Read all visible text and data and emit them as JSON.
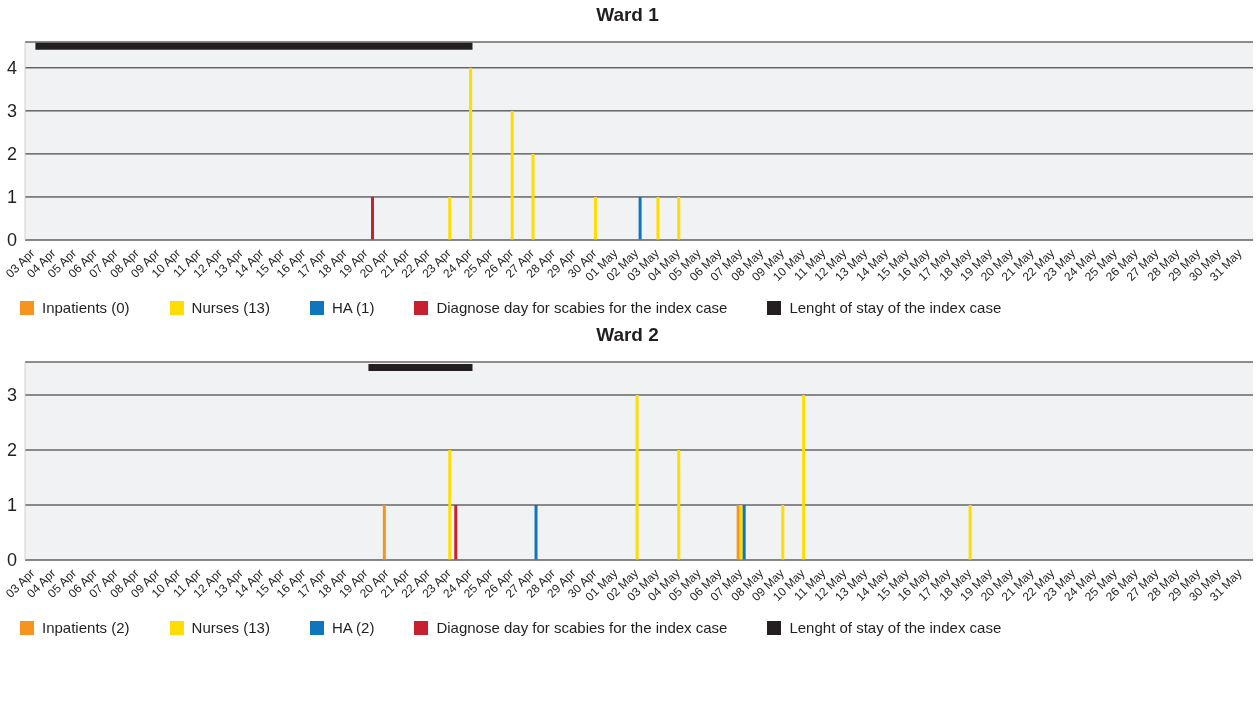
{
  "chart_data": [
    {
      "type": "bar",
      "title": "Ward 1",
      "categories": [
        "03 Apr",
        "04 Apr",
        "05 Apr",
        "06 Apr",
        "07 Apr",
        "08 Apr",
        "09 Apr",
        "10 Apr",
        "11 Apr",
        "12 Apr",
        "13 Apr",
        "14 Apr",
        "15 Apr",
        "16 Apr",
        "17 Apr",
        "18 Apr",
        "19 Apr",
        "20 Apr",
        "21 Apr",
        "22 Apr",
        "23 Apr",
        "24 Apr",
        "25 Apr",
        "26 Apr",
        "27 Apr",
        "28 Apr",
        "29 Apr",
        "30 Apr",
        "01 May",
        "02 May",
        "03 May",
        "04 May",
        "05 May",
        "06 May",
        "07 May",
        "08 May",
        "09 May",
        "10 May",
        "11 May",
        "12 May",
        "13 May",
        "14 May",
        "15 May",
        "16 May",
        "17 May",
        "18 May",
        "19 May",
        "20 May",
        "21 May",
        "22 May",
        "23 May",
        "24 May",
        "25 May",
        "26 May",
        "27 May",
        "28 May",
        "29 May",
        "30 May",
        "31 May"
      ],
      "series": [
        {
          "name": "Inpatients (0)",
          "color": "#f7941d",
          "values": [
            null,
            null,
            null,
            null,
            null,
            null,
            null,
            null,
            null,
            null,
            null,
            null,
            null,
            null,
            null,
            null,
            null,
            null,
            null,
            null,
            null,
            null,
            null,
            null,
            null,
            null,
            null,
            null,
            null,
            null,
            null,
            null,
            null,
            null,
            null,
            null,
            null,
            null,
            null,
            null,
            null,
            null,
            null,
            null,
            null,
            null,
            null,
            null,
            null,
            null,
            null,
            null,
            null,
            null,
            null,
            null,
            null,
            null,
            null
          ]
        },
        {
          "name": "Nurses (13)",
          "color": "#ffdd00",
          "values": [
            null,
            null,
            null,
            null,
            null,
            null,
            null,
            null,
            null,
            null,
            null,
            null,
            null,
            null,
            null,
            null,
            null,
            null,
            null,
            null,
            1,
            4,
            null,
            3,
            2,
            null,
            null,
            1,
            null,
            null,
            1,
            1,
            null,
            null,
            null,
            null,
            null,
            null,
            null,
            null,
            null,
            null,
            null,
            null,
            null,
            null,
            null,
            null,
            null,
            null,
            null,
            null,
            null,
            null,
            null,
            null,
            null,
            null,
            null
          ]
        },
        {
          "name": "HA (1)",
          "color": "#0f75bc",
          "values": [
            null,
            null,
            null,
            null,
            null,
            null,
            null,
            null,
            null,
            null,
            null,
            null,
            null,
            null,
            null,
            null,
            null,
            null,
            null,
            null,
            null,
            null,
            null,
            null,
            null,
            null,
            null,
            null,
            null,
            1,
            null,
            null,
            null,
            null,
            null,
            null,
            null,
            null,
            null,
            null,
            null,
            null,
            null,
            null,
            null,
            null,
            null,
            null,
            null,
            null,
            null,
            null,
            null,
            null,
            null,
            null,
            null,
            null,
            null
          ]
        },
        {
          "name": "Diagnose day for scabies for the index case",
          "color": "#c8202f",
          "values": [
            null,
            null,
            null,
            null,
            null,
            null,
            null,
            null,
            null,
            null,
            null,
            null,
            null,
            null,
            null,
            null,
            1,
            null,
            null,
            null,
            null,
            null,
            null,
            null,
            null,
            null,
            null,
            null,
            null,
            null,
            null,
            null,
            null,
            null,
            null,
            null,
            null,
            null,
            null,
            null,
            null,
            null,
            null,
            null,
            null,
            null,
            null,
            null,
            null,
            null,
            null,
            null,
            null,
            null,
            null,
            null,
            null,
            null,
            null
          ]
        },
        {
          "name": "Lenght of stay of the index case",
          "type": "line",
          "color": "#231f20",
          "values": [
            4.5,
            4.5,
            4.5,
            4.5,
            4.5,
            4.5,
            4.5,
            4.5,
            4.5,
            4.5,
            4.5,
            4.5,
            4.5,
            4.5,
            4.5,
            4.5,
            4.5,
            4.5,
            4.5,
            4.5,
            4.5,
            4.5,
            null,
            null,
            null,
            null,
            null,
            null,
            null,
            null,
            null,
            null,
            null,
            null,
            null,
            null,
            null,
            null,
            null,
            null,
            null,
            null,
            null,
            null,
            null,
            null,
            null,
            null,
            null,
            null,
            null,
            null,
            null,
            null,
            null,
            null,
            null,
            null,
            null
          ]
        }
      ],
      "ylim": [
        0,
        4.6
      ],
      "yticks": [
        0,
        1,
        2,
        3,
        4
      ],
      "grid": "y",
      "legend": "bottom"
    },
    {
      "type": "bar",
      "title": "Ward 2",
      "categories": [
        "03 Apr",
        "04 Apr",
        "05 Apr",
        "06 Apr",
        "07 Apr",
        "08 Apr",
        "09 Apr",
        "10 Apr",
        "11 Apr",
        "12 Apr",
        "13 Apr",
        "14 Apr",
        "15 Apr",
        "16 Apr",
        "17 Apr",
        "18 Apr",
        "19 Apr",
        "20 Apr",
        "21 Apr",
        "22 Apr",
        "23 Apr",
        "24 Apr",
        "25 Apr",
        "26 Apr",
        "27 Apr",
        "28 Apr",
        "29 Apr",
        "30 Apr",
        "01 May",
        "02 May",
        "03 May",
        "04 May",
        "05 May",
        "06 May",
        "07 May",
        "08 May",
        "09 May",
        "10 May",
        "11 May",
        "12 May",
        "13 May",
        "14 May",
        "15 May",
        "16 May",
        "17 May",
        "18 May",
        "19 May",
        "20 May",
        "21 May",
        "22 May",
        "23 May",
        "24 May",
        "25 May",
        "26 May",
        "27 May",
        "28 May",
        "29 May",
        "30 May",
        "31 May"
      ],
      "series": [
        {
          "name": "Inpatients (2)",
          "color": "#f7941d",
          "values": [
            null,
            null,
            null,
            null,
            null,
            null,
            null,
            null,
            null,
            null,
            null,
            null,
            null,
            null,
            null,
            null,
            null,
            1,
            null,
            null,
            null,
            null,
            null,
            null,
            null,
            null,
            null,
            null,
            null,
            null,
            null,
            null,
            null,
            null,
            1,
            null,
            null,
            null,
            null,
            null,
            null,
            null,
            null,
            null,
            null,
            null,
            null,
            null,
            null,
            null,
            null,
            null,
            null,
            null,
            null,
            null,
            null,
            null,
            null
          ]
        },
        {
          "name": "Nurses (13)",
          "color": "#ffdd00",
          "values": [
            null,
            null,
            null,
            null,
            null,
            null,
            null,
            null,
            null,
            null,
            null,
            null,
            null,
            null,
            null,
            null,
            null,
            null,
            null,
            null,
            2,
            null,
            null,
            null,
            null,
            null,
            null,
            null,
            null,
            3,
            null,
            2,
            null,
            null,
            1,
            null,
            1,
            3,
            null,
            null,
            null,
            null,
            null,
            null,
            null,
            1,
            null,
            null,
            null,
            null,
            null,
            null,
            null,
            null,
            null,
            null,
            null,
            null,
            null
          ]
        },
        {
          "name": "HA (2)",
          "color": "#0f75bc",
          "values": [
            null,
            null,
            null,
            null,
            null,
            null,
            null,
            null,
            null,
            null,
            null,
            null,
            null,
            null,
            null,
            null,
            null,
            null,
            null,
            null,
            null,
            null,
            null,
            null,
            1,
            null,
            null,
            null,
            null,
            null,
            null,
            null,
            null,
            null,
            1,
            null,
            null,
            null,
            null,
            null,
            null,
            null,
            null,
            null,
            null,
            null,
            null,
            null,
            null,
            null,
            null,
            null,
            null,
            null,
            null,
            null,
            null,
            null,
            null
          ]
        },
        {
          "name": "Diagnose day for scabies for the index case",
          "color": "#c8202f",
          "values": [
            null,
            null,
            null,
            null,
            null,
            null,
            null,
            null,
            null,
            null,
            null,
            null,
            null,
            null,
            null,
            null,
            null,
            null,
            null,
            null,
            1,
            null,
            null,
            null,
            null,
            null,
            null,
            null,
            null,
            null,
            null,
            null,
            null,
            null,
            null,
            null,
            null,
            null,
            null,
            null,
            null,
            null,
            null,
            null,
            null,
            null,
            null,
            null,
            null,
            null,
            null,
            null,
            null,
            null,
            null,
            null,
            null,
            null,
            null
          ]
        },
        {
          "name": "Lenght of stay of the index case",
          "type": "line",
          "color": "#231f20",
          "values": [
            null,
            null,
            null,
            null,
            null,
            null,
            null,
            null,
            null,
            null,
            null,
            null,
            null,
            null,
            null,
            null,
            3.5,
            3.5,
            3.5,
            3.5,
            3.5,
            3.5,
            null,
            null,
            null,
            null,
            null,
            null,
            null,
            null,
            null,
            null,
            null,
            null,
            null,
            null,
            null,
            null,
            null,
            null,
            null,
            null,
            null,
            null,
            null,
            null,
            null,
            null,
            null,
            null,
            null,
            null,
            null,
            null,
            null,
            null,
            null,
            null,
            null
          ]
        }
      ],
      "ylim": [
        0,
        3.6
      ],
      "yticks": [
        0,
        1,
        2,
        3
      ],
      "grid": "y",
      "legend": "bottom"
    }
  ]
}
